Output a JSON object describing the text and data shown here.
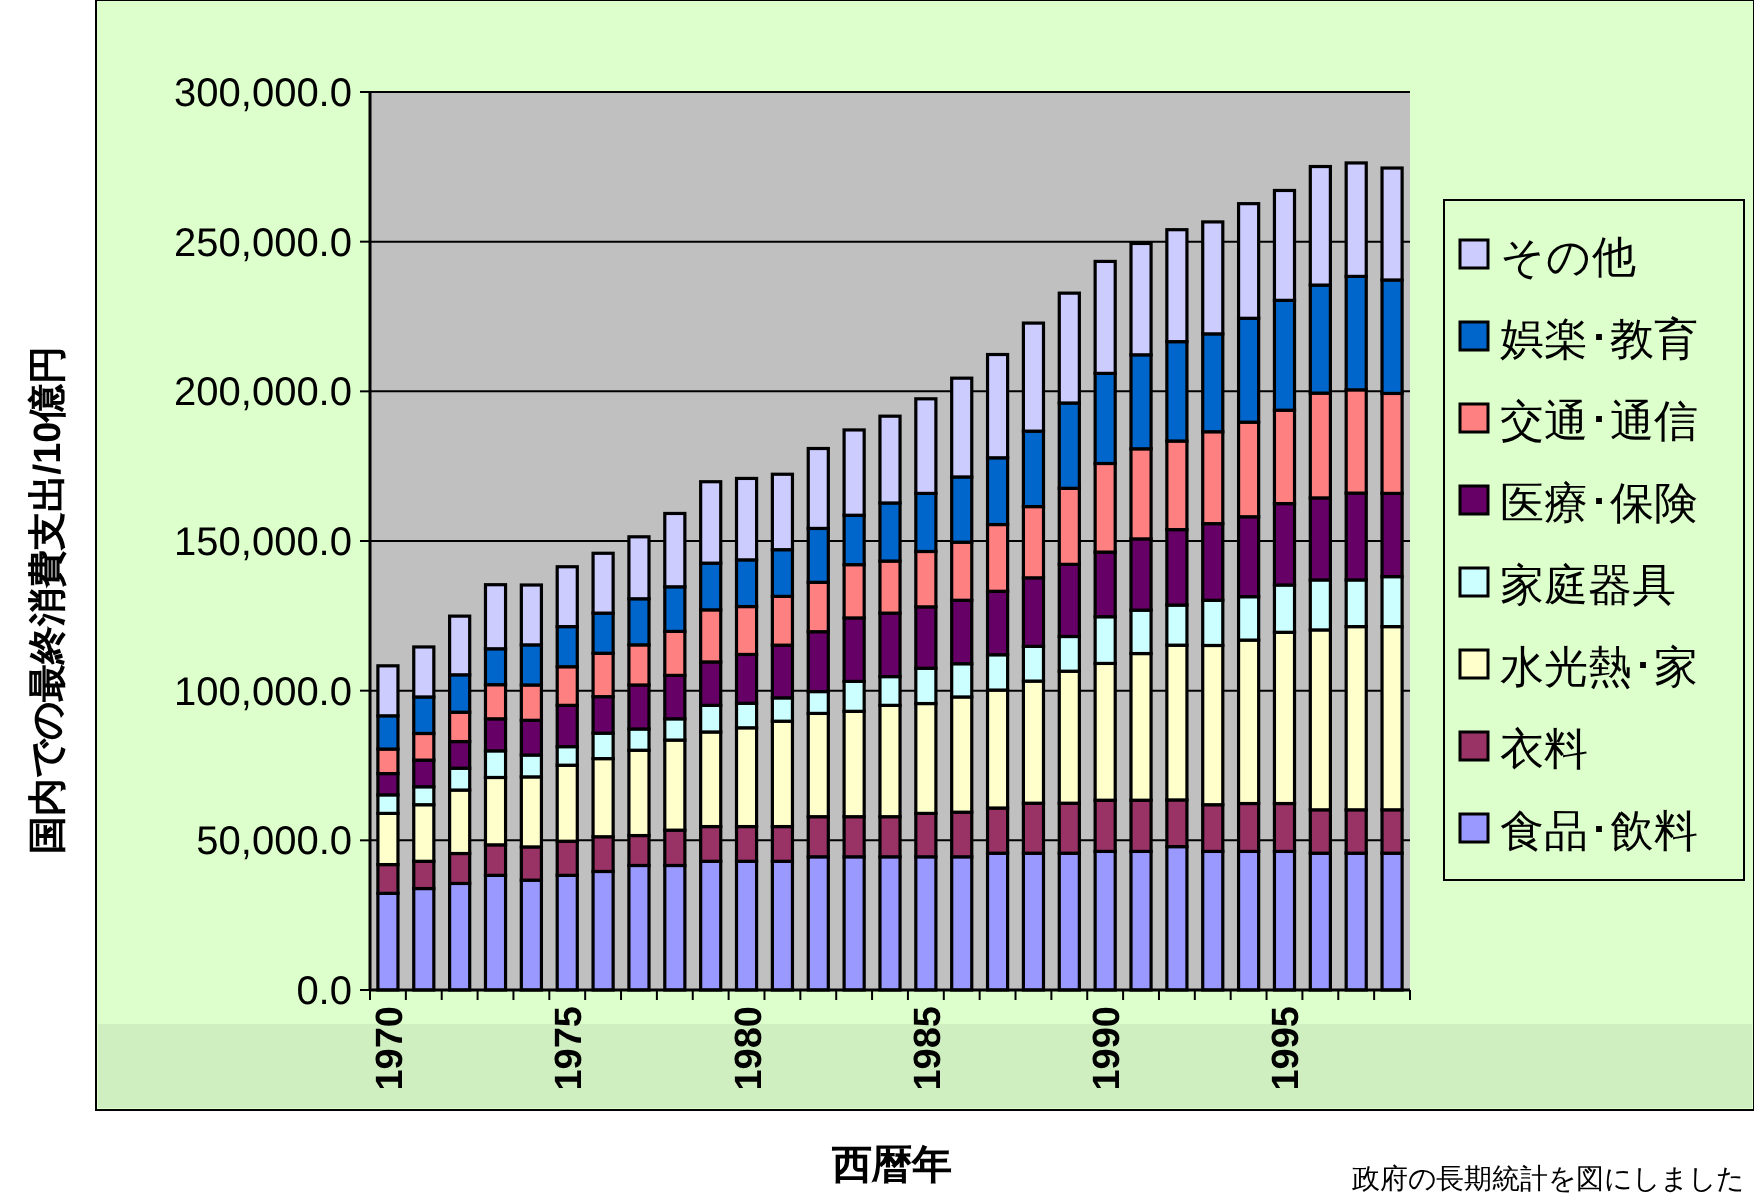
{
  "chart_data": {
    "type": "bar",
    "stacked": true,
    "grid": "y",
    "legend": "right",
    "xlabel": "西暦年",
    "ylabel": "国内での最終消費支出/10億円",
    "annotations": [
      "政府の長期統計を図にしました"
    ],
    "ylim": [
      0,
      300000
    ],
    "yticks": [
      {
        "value": 0,
        "label": "0.0"
      },
      {
        "value": 50000,
        "label": "50,000.0"
      },
      {
        "value": 100000,
        "label": "100,000.0"
      },
      {
        "value": 150000,
        "label": "150,000.0"
      },
      {
        "value": 200000,
        "label": "200,000.0"
      },
      {
        "value": 250000,
        "label": "250,000.0"
      },
      {
        "value": 300000,
        "label": "300,000.0"
      }
    ],
    "categories": [
      "1970",
      null,
      null,
      null,
      null,
      "1975",
      null,
      null,
      null,
      null,
      "1980",
      null,
      null,
      null,
      null,
      "1985",
      null,
      null,
      null,
      null,
      "1990",
      null,
      null,
      null,
      null,
      "1995",
      null,
      null,
      null
    ],
    "series": [
      {
        "name": "食品･飲料",
        "color": "#9999ff",
        "values": [
          32300,
          33900,
          35600,
          38300,
          36700,
          38300,
          39600,
          41600,
          41600,
          43000,
          43000,
          43000,
          44500,
          44500,
          44500,
          44500,
          44500,
          45700,
          45700,
          45700,
          46300,
          46300,
          47900,
          46300,
          46300,
          46300,
          45700,
          45700,
          45700
        ]
      },
      {
        "name": "衣料",
        "color": "#993366",
        "values": [
          9600,
          9100,
          10000,
          10200,
          11100,
          11400,
          11600,
          10000,
          11800,
          11600,
          11600,
          11600,
          13400,
          13400,
          13400,
          14500,
          14900,
          15100,
          16700,
          16700,
          17100,
          17100,
          15600,
          15600,
          16000,
          16000,
          14500,
          14500,
          14500
        ]
      },
      {
        "name": "水光熱･家",
        "color": "#ffffcc",
        "values": [
          17100,
          18900,
          21200,
          22500,
          23400,
          25400,
          26100,
          28500,
          30100,
          31600,
          33000,
          35200,
          34500,
          35200,
          37200,
          36700,
          38500,
          39400,
          40800,
          44100,
          45700,
          49000,
          51700,
          53200,
          54600,
          57200,
          60100,
          61200,
          61200
        ]
      },
      {
        "name": "家庭器具",
        "color": "#ccffff",
        "values": [
          6200,
          6000,
          7300,
          8900,
          7300,
          6200,
          8500,
          7100,
          7100,
          8900,
          8200,
          7800,
          7300,
          10000,
          9600,
          11800,
          11100,
          11800,
          11600,
          11600,
          15600,
          14500,
          13400,
          15100,
          14500,
          15800,
          16700,
          15600,
          16700
        ]
      },
      {
        "name": "医療･保険",
        "color": "#660066",
        "values": [
          7100,
          8900,
          8900,
          10700,
          11600,
          13800,
          12200,
          14700,
          14500,
          14500,
          16300,
          17600,
          20000,
          21200,
          21200,
          20500,
          21200,
          21200,
          22900,
          24100,
          21600,
          23800,
          25200,
          25600,
          26700,
          27200,
          27400,
          29000,
          27800
        ]
      },
      {
        "name": "交通･通信",
        "color": "#ff8080",
        "values": [
          8200,
          8900,
          9800,
          11400,
          11800,
          12900,
          14500,
          13400,
          14700,
          17400,
          16000,
          16300,
          16500,
          17800,
          17400,
          18500,
          19400,
          22300,
          23800,
          25400,
          29600,
          30100,
          29600,
          30700,
          31600,
          31200,
          35000,
          34500,
          33400
        ]
      },
      {
        "name": "娯楽･教育",
        "color": "#0066cc",
        "values": [
          11100,
          12200,
          12500,
          12000,
          13400,
          13400,
          13400,
          15400,
          14900,
          15600,
          15600,
          15600,
          18000,
          16500,
          19400,
          19400,
          21800,
          22300,
          25200,
          28500,
          30100,
          31400,
          33200,
          32700,
          34700,
          36700,
          36100,
          37900,
          37900
        ]
      },
      {
        "name": "その他",
        "color": "#ccccff",
        "values": [
          16700,
          16700,
          19600,
          21400,
          20000,
          20000,
          20000,
          20700,
          24500,
          27200,
          27200,
          25200,
          26700,
          28500,
          29000,
          31600,
          33000,
          34500,
          36100,
          36700,
          37400,
          37200,
          37400,
          37400,
          38300,
          36700,
          39600,
          37900,
          37400
        ]
      }
    ]
  }
}
